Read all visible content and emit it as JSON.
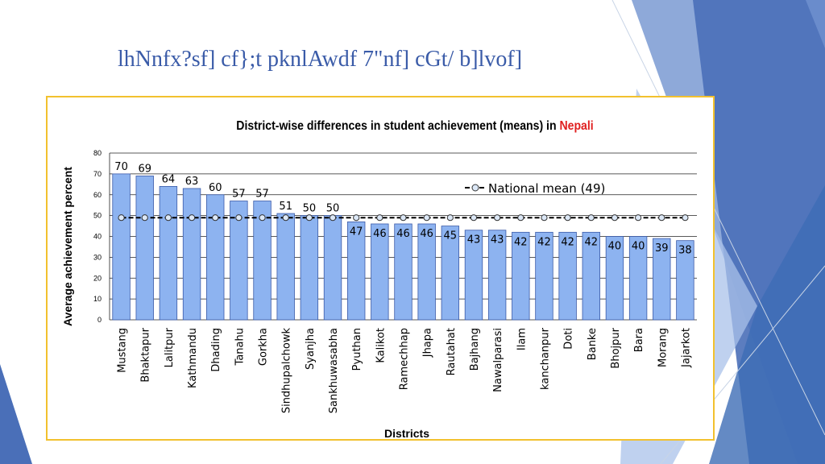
{
  "slide": {
    "title": "lhNnfx?sf] cf};t pknlAwdf 7\"nf] cGt/ b]lvof]",
    "accent_color": "#3a5ba8",
    "frame_color": "#f2c12e"
  },
  "chart_data": {
    "type": "bar",
    "title_prefix": "District-wise differences in student achievement (means) in ",
    "title_highlight": "Nepali",
    "title_highlight_color": "#e02020",
    "xlabel": "Districts",
    "ylabel": "Average achievement percent",
    "ylim": [
      0,
      80
    ],
    "yticks": [
      0,
      10,
      20,
      30,
      40,
      50,
      60,
      70,
      80
    ],
    "grid": true,
    "legend_position": "top-right",
    "bar_color": "#8db3f0",
    "categories": [
      "Mustang",
      "Bhaktapur",
      "Lalitpur",
      "Kathmandu",
      "Dhading",
      "Tanahu",
      "Gorkha",
      "Sindhupalchowk",
      "Syanjha",
      "Sankhuwasabha",
      "Pyuthan",
      "Kalikot",
      "Ramechhap",
      "Jhapa",
      "Rautahat",
      "Bajhang",
      "Nawalparasi",
      "Ilam",
      "kanchanpur",
      "Doti",
      "Banke",
      "Bhojpur",
      "Bara",
      "Morang",
      "Jajarkot"
    ],
    "series": [
      {
        "values": [
          70,
          69,
          64,
          63,
          60,
          57,
          57,
          51,
          50,
          50,
          47,
          46,
          46,
          46,
          45,
          43,
          43,
          42,
          42,
          42,
          42,
          40,
          40,
          39,
          38
        ],
        "labels": [
          "70",
          "69",
          "64",
          "63",
          "60",
          "57",
          "57",
          "51",
          "50",
          "50",
          "47",
          "46",
          "46",
          "46",
          "45",
          "43",
          "43",
          "42",
          "42",
          "42",
          "42",
          "40",
          "40",
          "39",
          "38"
        ]
      },
      {
        "name": "National mean (49)",
        "type": "line",
        "values": [
          49,
          49,
          49,
          49,
          49,
          49,
          49,
          49,
          49,
          49,
          49,
          49,
          49,
          49,
          49,
          49,
          49,
          49,
          49,
          49,
          49,
          49,
          49,
          49,
          49
        ]
      }
    ]
  }
}
